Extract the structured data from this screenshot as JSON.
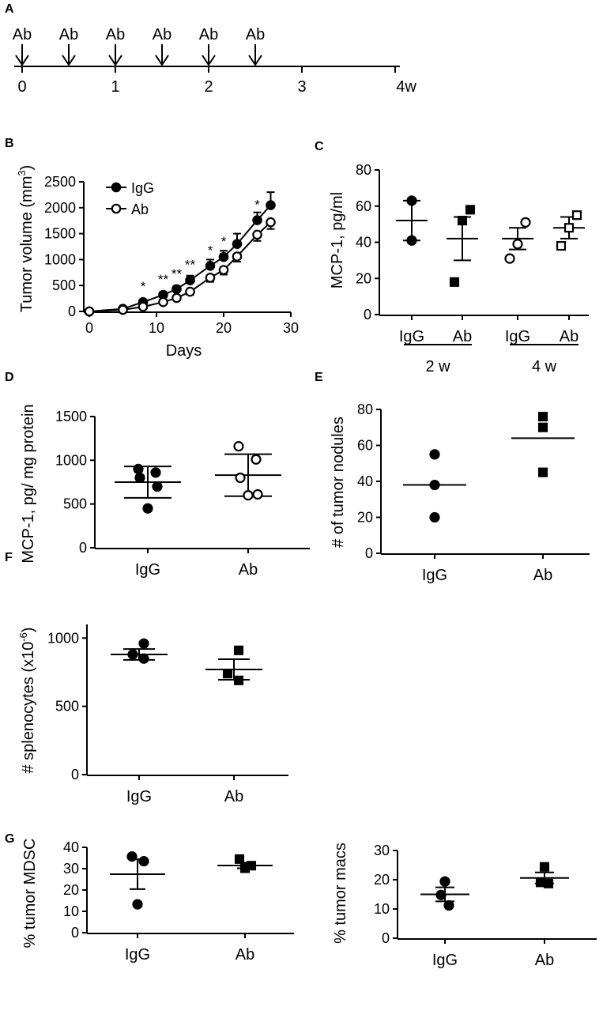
{
  "chart_data": [
    {
      "panel": "A",
      "type": "timeline",
      "event_label": "Ab",
      "event_times": [
        0,
        0.5,
        1,
        1.5,
        2,
        2.5
      ],
      "ticks": [
        0,
        1,
        2,
        3,
        4
      ],
      "tick_labels": [
        "0",
        "1",
        "2",
        "3",
        "4w"
      ]
    },
    {
      "panel": "B",
      "type": "line",
      "xlabel": "Days",
      "ylabel_main": "Tumor volume (mm",
      "ylabel_sup": "3",
      "ylabel_end": ")",
      "xlim": [
        0,
        30
      ],
      "ylim": [
        0,
        2500
      ],
      "xticks": [
        0,
        10,
        20,
        30
      ],
      "yticks": [
        0,
        500,
        1000,
        1500,
        2000,
        2500
      ],
      "series": [
        {
          "name": "IgG",
          "marker": "filled-circle",
          "x": [
            0,
            5,
            8,
            11,
            13,
            15,
            18,
            20,
            22,
            25,
            27
          ],
          "y": [
            0,
            50,
            180,
            320,
            430,
            600,
            880,
            1050,
            1300,
            1760,
            2050
          ],
          "err": [
            0,
            20,
            40,
            50,
            60,
            90,
            120,
            120,
            200,
            150,
            250
          ]
        },
        {
          "name": "Ab",
          "marker": "open-circle",
          "x": [
            0,
            5,
            8,
            11,
            13,
            15,
            18,
            20,
            22,
            25,
            27
          ],
          "y": [
            0,
            30,
            90,
            180,
            260,
            380,
            650,
            800,
            1060,
            1480,
            1720
          ],
          "err": [
            0,
            15,
            20,
            30,
            40,
            60,
            80,
            90,
            100,
            120,
            130
          ]
        }
      ],
      "annotations": [
        {
          "x": 8,
          "text": "*"
        },
        {
          "x": 11,
          "text": "**"
        },
        {
          "x": 13,
          "text": "**"
        },
        {
          "x": 15,
          "text": "**"
        },
        {
          "x": 18,
          "text": "*"
        },
        {
          "x": 20,
          "text": "*"
        },
        {
          "x": 25,
          "text": "*"
        }
      ]
    },
    {
      "panel": "C",
      "type": "scatter",
      "ylabel": "MCP-1, pg/ml",
      "ylim": [
        0,
        80
      ],
      "yticks": [
        0,
        20,
        40,
        60,
        80
      ],
      "categories": [
        "IgG",
        "Ab",
        "IgG",
        "Ab"
      ],
      "groups": [
        {
          "label": "2 w",
          "span": [
            0,
            1
          ]
        },
        {
          "label": "4 w",
          "span": [
            2,
            3
          ]
        }
      ],
      "series": [
        {
          "marker": "filled-circle",
          "points": [
            63,
            41
          ],
          "mean": 52,
          "sem": 11
        },
        {
          "marker": "filled-square",
          "points": [
            58,
            52,
            18
          ],
          "mean": 42,
          "sem": 12
        },
        {
          "marker": "open-circle",
          "points": [
            51,
            39,
            31
          ],
          "mean": 42,
          "sem": 6
        },
        {
          "marker": "open-square",
          "points": [
            55,
            48,
            38
          ],
          "mean": 48,
          "sem": 6
        }
      ]
    },
    {
      "panel": "D",
      "type": "scatter",
      "ylabel": "MCP-1, pg/ mg protein",
      "ylim": [
        0,
        1500
      ],
      "yticks": [
        0,
        500,
        1000,
        1500
      ],
      "categories": [
        "IgG",
        "Ab"
      ],
      "series": [
        {
          "marker": "filled-circle",
          "points": [
            900,
            860,
            800,
            700,
            450
          ],
          "mean": 750,
          "sd": 180
        },
        {
          "marker": "open-circle",
          "points": [
            1160,
            1010,
            800,
            610,
            600
          ],
          "mean": 830,
          "sd": 240
        }
      ]
    },
    {
      "panel": "E",
      "type": "scatter",
      "ylabel": "# of tumor nodules",
      "ylim": [
        0,
        80
      ],
      "yticks": [
        0,
        20,
        40,
        60,
        80
      ],
      "categories": [
        "IgG",
        "Ab"
      ],
      "series": [
        {
          "marker": "filled-circle",
          "points": [
            55,
            38,
            20
          ],
          "mean": 38
        },
        {
          "marker": "filled-square",
          "points": [
            76,
            70,
            45
          ],
          "mean": 64
        }
      ]
    },
    {
      "panel": "F",
      "type": "scatter",
      "ylabel_main": "# splenocytes (x10",
      "ylabel_sup": "-6",
      "ylabel_end": ")",
      "ylim": [
        0,
        1100
      ],
      "yticks": [
        0,
        500,
        1000
      ],
      "categories": [
        "IgG",
        "Ab"
      ],
      "series": [
        {
          "marker": "filled-circle",
          "points": [
            960,
            880,
            850
          ],
          "mean": 880,
          "sem": 40
        },
        {
          "marker": "filled-square",
          "points": [
            910,
            740,
            690
          ],
          "mean": 770,
          "sem": 75
        }
      ]
    },
    {
      "panel": "G",
      "type": "scatter",
      "ylabel": "% tumor MDSC",
      "ylim": [
        0,
        40
      ],
      "yticks": [
        0,
        10,
        20,
        30,
        40
      ],
      "categories": [
        "IgG",
        "Ab"
      ],
      "series": [
        {
          "marker": "filled-circle",
          "points": [
            35.7,
            33.5,
            13.3
          ],
          "mean": 27.4,
          "sem": 7
        },
        {
          "marker": "filled-square",
          "points": [
            34.5,
            31.4,
            30.2
          ],
          "mean": 31.5,
          "sem": 1.3
        }
      ]
    },
    {
      "panel": "G",
      "type": "scatter",
      "ylabel": "% tumor macs",
      "ylim": [
        0,
        30
      ],
      "yticks": [
        0,
        10,
        20,
        30
      ],
      "categories": [
        "IgG",
        "Ab"
      ],
      "series": [
        {
          "marker": "filled-circle",
          "points": [
            19.4,
            14.8,
            11.2
          ],
          "mean": 15,
          "sem": 2.4
        },
        {
          "marker": "filled-square",
          "points": [
            24.4,
            19.1,
            18.7
          ],
          "mean": 20.6,
          "sem": 1.9
        }
      ]
    }
  ]
}
